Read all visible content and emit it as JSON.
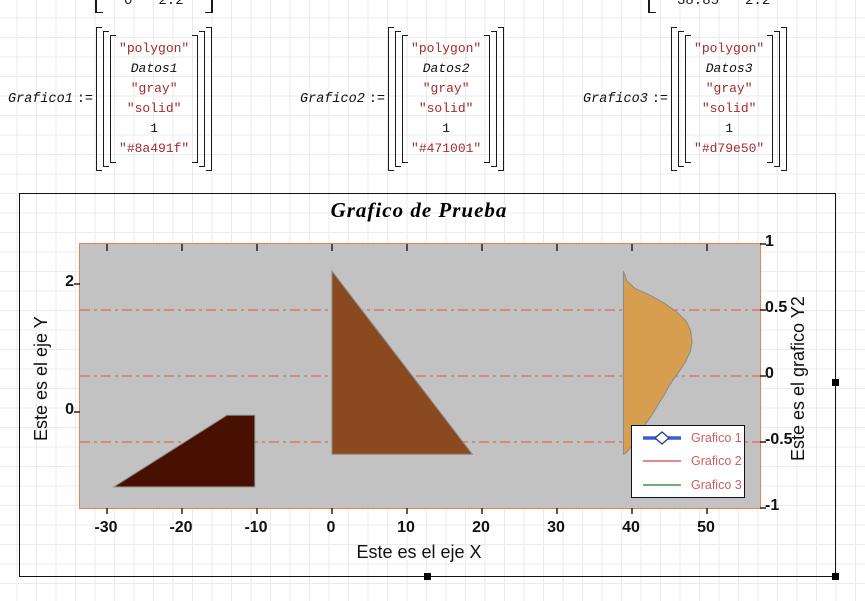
{
  "worksheet": {
    "top_fragments": [
      {
        "values": [
          "0",
          "2.2"
        ]
      },
      {
        "values": [
          "38.85",
          "2.2"
        ]
      }
    ],
    "definitions": [
      {
        "name": "Grafico1",
        "assign": ":=",
        "rows": [
          {
            "text": "\"polygon\"",
            "kind": "string"
          },
          {
            "text": "Datos1",
            "kind": "variable"
          },
          {
            "text": "\"gray\"",
            "kind": "string"
          },
          {
            "text": "\"solid\"",
            "kind": "string"
          },
          {
            "text": "1",
            "kind": "number"
          },
          {
            "text": "\"#8a491f\"",
            "kind": "string"
          }
        ]
      },
      {
        "name": "Grafico2",
        "assign": ":=",
        "rows": [
          {
            "text": "\"polygon\"",
            "kind": "string"
          },
          {
            "text": "Datos2",
            "kind": "variable"
          },
          {
            "text": "\"gray\"",
            "kind": "string"
          },
          {
            "text": "\"solid\"",
            "kind": "string"
          },
          {
            "text": "1",
            "kind": "number"
          },
          {
            "text": "\"#471001\"",
            "kind": "string"
          }
        ]
      },
      {
        "name": "Grafico3",
        "assign": ":=",
        "rows": [
          {
            "text": "\"polygon\"",
            "kind": "string"
          },
          {
            "text": "Datos3",
            "kind": "variable"
          },
          {
            "text": "\"gray\"",
            "kind": "string"
          },
          {
            "text": "\"solid\"",
            "kind": "string"
          },
          {
            "text": "1",
            "kind": "number"
          },
          {
            "text": "\"#d79e50\"",
            "kind": "string"
          }
        ]
      }
    ]
  },
  "chart_data": {
    "type": "polygon-plot",
    "title": "Grafico de Prueba",
    "xlabel": "Este es el eje X",
    "ylabel_left": "Este es el eje Y",
    "ylabel_right": "Este es el grafico Y2",
    "x_ticks": [
      -30,
      -20,
      -10,
      0,
      10,
      20,
      30,
      40,
      50
    ],
    "y_ticks_left": [
      2,
      0
    ],
    "y_ticks_right": [
      1,
      0.5,
      0,
      -0.5,
      -1
    ],
    "xlim": [
      -33.6,
      57.1
    ],
    "ylim_left": [
      -1.5,
      2.63
    ],
    "ylim_right": [
      -1,
      1
    ],
    "grid_y_right": [
      0.5,
      0,
      -0.5
    ],
    "grid_color": "#cf8d82",
    "plot_bg": "#c2c2c2",
    "plot_border_color": "#ec8350",
    "outline_color": "#8a8a8a",
    "series": [
      {
        "name": "Grafico 1",
        "fill": "#8a491f",
        "stroke": "gray",
        "line_style": "solid",
        "line_width": 1,
        "points": [
          [
            0,
            2.2
          ],
          [
            18.7,
            -0.66
          ],
          [
            0,
            -0.66
          ]
        ]
      },
      {
        "name": "Grafico 2",
        "fill": "#471001",
        "stroke": "gray",
        "line_style": "solid",
        "line_width": 1,
        "points": [
          [
            -29.1,
            -1.17
          ],
          [
            -14,
            -0.05
          ],
          [
            -10.3,
            -0.05
          ],
          [
            -10.3,
            -1.17
          ]
        ]
      },
      {
        "name": "Grafico 3",
        "fill": "#d79e50",
        "stroke": "gray",
        "line_style": "solid",
        "line_width": 1,
        "points": [
          [
            38.85,
            2.2
          ],
          [
            39.3,
            2.05
          ],
          [
            40.4,
            1.93
          ],
          [
            42.3,
            1.83
          ],
          [
            44.3,
            1.7
          ],
          [
            46.0,
            1.56
          ],
          [
            47.2,
            1.42
          ],
          [
            47.8,
            1.28
          ],
          [
            48.0,
            1.1
          ],
          [
            47.8,
            0.95
          ],
          [
            47.1,
            0.78
          ],
          [
            46.4,
            0.65
          ],
          [
            45.6,
            0.52
          ],
          [
            44.9,
            0.4
          ],
          [
            44.3,
            0.27
          ],
          [
            43.6,
            0.14
          ],
          [
            42.9,
            0.0
          ],
          [
            42.1,
            -0.14
          ],
          [
            41.3,
            -0.27
          ],
          [
            40.8,
            -0.37
          ],
          [
            40.3,
            -0.47
          ],
          [
            39.7,
            -0.57
          ],
          [
            39.2,
            -0.64
          ],
          [
            38.85,
            -0.66
          ]
        ]
      }
    ],
    "legend": {
      "text_color": "#cd5f5f",
      "entries": [
        {
          "label": "Grafico 1",
          "line_color": "#3a5fcd",
          "line_width": 3.5,
          "marker": "diamond",
          "marker_fill": "#ffffff",
          "marker_stroke": "#223a8f"
        },
        {
          "label": "Grafico 2",
          "line_color": "#e06060",
          "line_width": 1.5
        },
        {
          "label": "Grafico 3",
          "line_color": "#3f9644",
          "line_width": 1.5
        }
      ]
    }
  }
}
